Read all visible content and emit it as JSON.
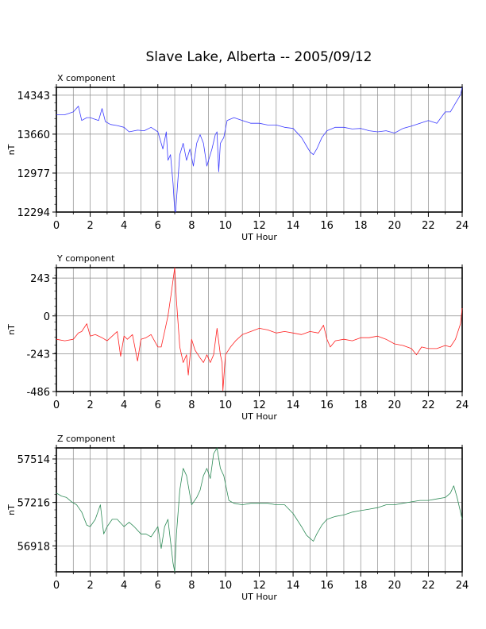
{
  "title": "Slave Lake, Alberta -- 2005/09/12",
  "chart_data": [
    {
      "type": "line",
      "panel_label": "X component",
      "xlabel": "UT Hour",
      "ylabel": "nT",
      "color": "#3b3bff",
      "xlim": [
        0,
        24
      ],
      "ylim": [
        12294,
        14480
      ],
      "xticks": [
        "0",
        "2",
        "4",
        "6",
        "8",
        "10",
        "12",
        "14",
        "16",
        "18",
        "20",
        "22",
        "24"
      ],
      "yticks": [
        {
          "v": 14343,
          "t": "14343"
        },
        {
          "v": 13660,
          "t": "13660"
        },
        {
          "v": 12977,
          "t": "12977"
        },
        {
          "v": 12294,
          "t": "12294"
        }
      ],
      "grid": true,
      "series": [
        {
          "x": [
            0,
            0.5,
            1.0,
            1.3,
            1.5,
            1.8,
            2.0,
            2.5,
            2.7,
            2.9,
            3.2,
            3.6,
            4.0,
            4.3,
            4.8,
            5.2,
            5.6,
            6.0,
            6.3,
            6.5,
            6.6,
            6.75,
            6.9,
            7.0,
            7.05,
            7.15,
            7.3,
            7.5,
            7.7,
            7.9,
            8.1,
            8.3,
            8.5,
            8.7,
            8.9,
            9.0,
            9.2,
            9.4,
            9.5,
            9.6,
            9.7,
            9.9,
            10.1,
            10.5,
            11.0,
            11.5,
            12.0,
            12.5,
            13.0,
            13.5,
            14.0,
            14.5,
            14.8,
            15.0,
            15.2,
            15.4,
            15.7,
            16.0,
            16.5,
            17.0,
            17.5,
            18.0,
            18.5,
            19.0,
            19.5,
            20.0,
            20.5,
            21.0,
            21.5,
            22.0,
            22.5,
            23.0,
            23.3,
            23.6,
            23.9,
            24.0
          ],
          "y": [
            14000,
            14000,
            14050,
            14150,
            13900,
            13950,
            13950,
            13900,
            14110,
            13880,
            13830,
            13810,
            13780,
            13700,
            13730,
            13720,
            13780,
            13700,
            13400,
            13700,
            13200,
            13300,
            12800,
            12320,
            12294,
            12700,
            13300,
            13500,
            13200,
            13400,
            13100,
            13500,
            13650,
            13500,
            13100,
            13200,
            13400,
            13650,
            13700,
            13000,
            13500,
            13600,
            13900,
            13950,
            13900,
            13850,
            13850,
            13820,
            13820,
            13780,
            13760,
            13600,
            13450,
            13350,
            13300,
            13400,
            13600,
            13720,
            13780,
            13780,
            13750,
            13760,
            13720,
            13700,
            13720,
            13680,
            13760,
            13800,
            13850,
            13900,
            13850,
            14050,
            14050,
            14200,
            14350,
            14480
          ]
        }
      ]
    },
    {
      "type": "line",
      "panel_label": "Y component",
      "xlabel": "UT Hour",
      "ylabel": "nT",
      "color": "#ff2020",
      "xlim": [
        0,
        24
      ],
      "ylim": [
        -486,
        310
      ],
      "xticks": [
        "0",
        "2",
        "4",
        "6",
        "8",
        "10",
        "12",
        "14",
        "16",
        "18",
        "20",
        "22",
        "24"
      ],
      "yticks": [
        {
          "v": 243,
          "t": "243"
        },
        {
          "v": 0,
          "t": "0"
        },
        {
          "v": -243,
          "t": "-243"
        },
        {
          "v": -486,
          "t": "-486"
        }
      ],
      "grid": true,
      "series": [
        {
          "x": [
            0,
            0.5,
            1.0,
            1.3,
            1.5,
            1.8,
            2.0,
            2.3,
            2.7,
            3.0,
            3.3,
            3.6,
            3.8,
            4.0,
            4.2,
            4.5,
            4.8,
            5.0,
            5.3,
            5.6,
            6.0,
            6.2,
            6.4,
            6.6,
            6.8,
            7.0,
            7.1,
            7.3,
            7.5,
            7.7,
            7.8,
            8.0,
            8.2,
            8.5,
            8.7,
            8.9,
            9.1,
            9.3,
            9.5,
            9.7,
            9.8,
            9.85,
            10.0,
            10.3,
            10.6,
            11.0,
            11.5,
            12.0,
            12.5,
            13.0,
            13.5,
            14.0,
            14.5,
            15.0,
            15.5,
            15.8,
            16.0,
            16.2,
            16.5,
            17.0,
            17.5,
            18.0,
            18.5,
            19.0,
            19.5,
            20.0,
            20.5,
            21.0,
            21.3,
            21.6,
            22.0,
            22.5,
            23.0,
            23.3,
            23.6,
            23.9,
            24.0
          ],
          "y": [
            -150,
            -160,
            -150,
            -110,
            -100,
            -50,
            -130,
            -120,
            -140,
            -160,
            -130,
            -100,
            -260,
            -130,
            -150,
            -120,
            -290,
            -150,
            -140,
            -120,
            -200,
            -200,
            -100,
            0,
            150,
            310,
            100,
            -200,
            -300,
            -250,
            -380,
            -150,
            -220,
            -270,
            -300,
            -250,
            -300,
            -250,
            -80,
            -250,
            -300,
            -480,
            -250,
            -200,
            -160,
            -120,
            -100,
            -80,
            -90,
            -110,
            -100,
            -110,
            -120,
            -100,
            -110,
            -60,
            -150,
            -200,
            -160,
            -150,
            -160,
            -140,
            -140,
            -130,
            -150,
            -180,
            -190,
            -210,
            -250,
            -200,
            -210,
            -210,
            -190,
            -200,
            -150,
            -50,
            50
          ]
        }
      ]
    },
    {
      "type": "line",
      "panel_label": "Z component",
      "xlabel": "UT Hour",
      "ylabel": "nT",
      "color": "#2e8b57",
      "xlim": [
        0,
        24
      ],
      "ylim": [
        56740,
        57590
      ],
      "xticks": [
        "0",
        "2",
        "4",
        "6",
        "8",
        "10",
        "12",
        "14",
        "16",
        "18",
        "20",
        "22",
        "24"
      ],
      "yticks": [
        {
          "v": 57514,
          "t": "57514"
        },
        {
          "v": 57216,
          "t": "57216"
        },
        {
          "v": 56918,
          "t": "56918"
        }
      ],
      "grid": true,
      "series": [
        {
          "x": [
            0,
            0.3,
            0.6,
            0.9,
            1.2,
            1.5,
            1.8,
            2.0,
            2.3,
            2.6,
            2.8,
            3.0,
            3.3,
            3.6,
            4.0,
            4.3,
            4.6,
            5.0,
            5.3,
            5.6,
            6.0,
            6.2,
            6.4,
            6.6,
            6.8,
            6.9,
            7.0,
            7.1,
            7.3,
            7.5,
            7.7,
            8.0,
            8.3,
            8.5,
            8.7,
            8.9,
            9.1,
            9.3,
            9.5,
            9.7,
            9.9,
            10.2,
            10.5,
            11.0,
            11.5,
            12.0,
            12.5,
            13.0,
            13.5,
            14.0,
            14.5,
            14.8,
            15.0,
            15.2,
            15.4,
            15.7,
            16.0,
            16.5,
            17.0,
            17.5,
            18.0,
            18.5,
            19.0,
            19.5,
            20.0,
            20.5,
            21.0,
            21.5,
            22.0,
            22.5,
            23.0,
            23.3,
            23.5,
            23.7,
            23.9,
            24.0
          ],
          "y": [
            57280,
            57260,
            57250,
            57220,
            57200,
            57150,
            57060,
            57050,
            57100,
            57200,
            57000,
            57050,
            57100,
            57100,
            57050,
            57080,
            57050,
            57000,
            57000,
            56980,
            57050,
            56900,
            57050,
            57100,
            56900,
            56800,
            56740,
            57000,
            57300,
            57450,
            57400,
            57200,
            57250,
            57300,
            57400,
            57450,
            57380,
            57550,
            57590,
            57450,
            57400,
            57230,
            57210,
            57200,
            57210,
            57210,
            57210,
            57200,
            57200,
            57140,
            57050,
            56990,
            56970,
            56950,
            57000,
            57060,
            57100,
            57120,
            57130,
            57150,
            57160,
            57170,
            57180,
            57200,
            57200,
            57210,
            57220,
            57230,
            57230,
            57240,
            57250,
            57280,
            57330,
            57250,
            57150,
            57100
          ]
        }
      ]
    }
  ]
}
